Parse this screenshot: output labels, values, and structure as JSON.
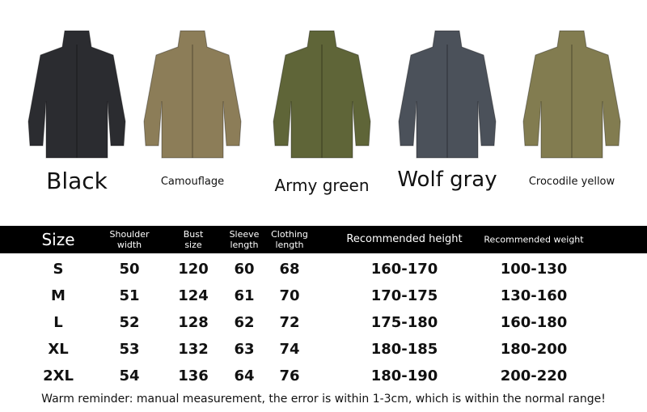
{
  "products": [
    {
      "label": "Black",
      "color": "#2b2c30"
    },
    {
      "label": "Camouflage",
      "color": "#8c7d58"
    },
    {
      "label": "Army green",
      "color": "#5f6538"
    },
    {
      "label": "Wolf gray",
      "color": "#4b515a"
    },
    {
      "label": "Crocodile yellow",
      "color": "#827c50"
    }
  ],
  "table": {
    "headers": [
      "Size",
      "Shoulder width",
      "Bust size",
      "Sleeve length",
      "Clothing length",
      "Recommended height",
      "Recommended weight"
    ],
    "rows": [
      [
        "S",
        "50",
        "120",
        "60",
        "68",
        "160-170",
        "100-130"
      ],
      [
        "M",
        "51",
        "124",
        "61",
        "70",
        "170-175",
        "130-160"
      ],
      [
        "L",
        "52",
        "128",
        "62",
        "72",
        "175-180",
        "160-180"
      ],
      [
        "XL",
        "53",
        "132",
        "63",
        "74",
        "180-185",
        "180-200"
      ],
      [
        "2XL",
        "54",
        "136",
        "64",
        "76",
        "180-190",
        "200-220"
      ]
    ]
  },
  "footer": "Warm reminder: manual measurement, the error is within 1-3cm, which is within the normal range!"
}
